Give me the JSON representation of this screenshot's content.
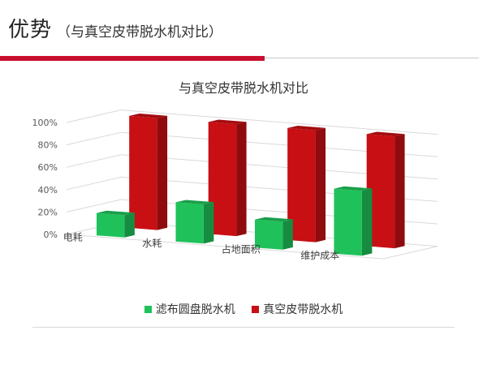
{
  "header": {
    "title": "优势",
    "subtitle": "（与真空皮带脱水机对比）"
  },
  "theme": {
    "accent_red": "#c8102e",
    "rule_gray": "#c8c8c8"
  },
  "chart_data": {
    "type": "bar",
    "style": "3d-clustered-column",
    "title": "与真空皮带脱水机对比",
    "categories": [
      "电耗",
      "水耗",
      "占地面积",
      "维护成本"
    ],
    "series": [
      {
        "name": "滤布圆盘脱水机",
        "color": "#1fc25a",
        "values": [
          20,
          35,
          25,
          58
        ]
      },
      {
        "name": "真空皮带脱水机",
        "color": "#c80f14",
        "values": [
          100,
          100,
          100,
          100
        ]
      }
    ],
    "y_ticks": [
      "0%",
      "20%",
      "40%",
      "60%",
      "80%",
      "100%"
    ],
    "ylim": [
      0,
      100
    ],
    "grid": true,
    "legend_position": "bottom"
  }
}
